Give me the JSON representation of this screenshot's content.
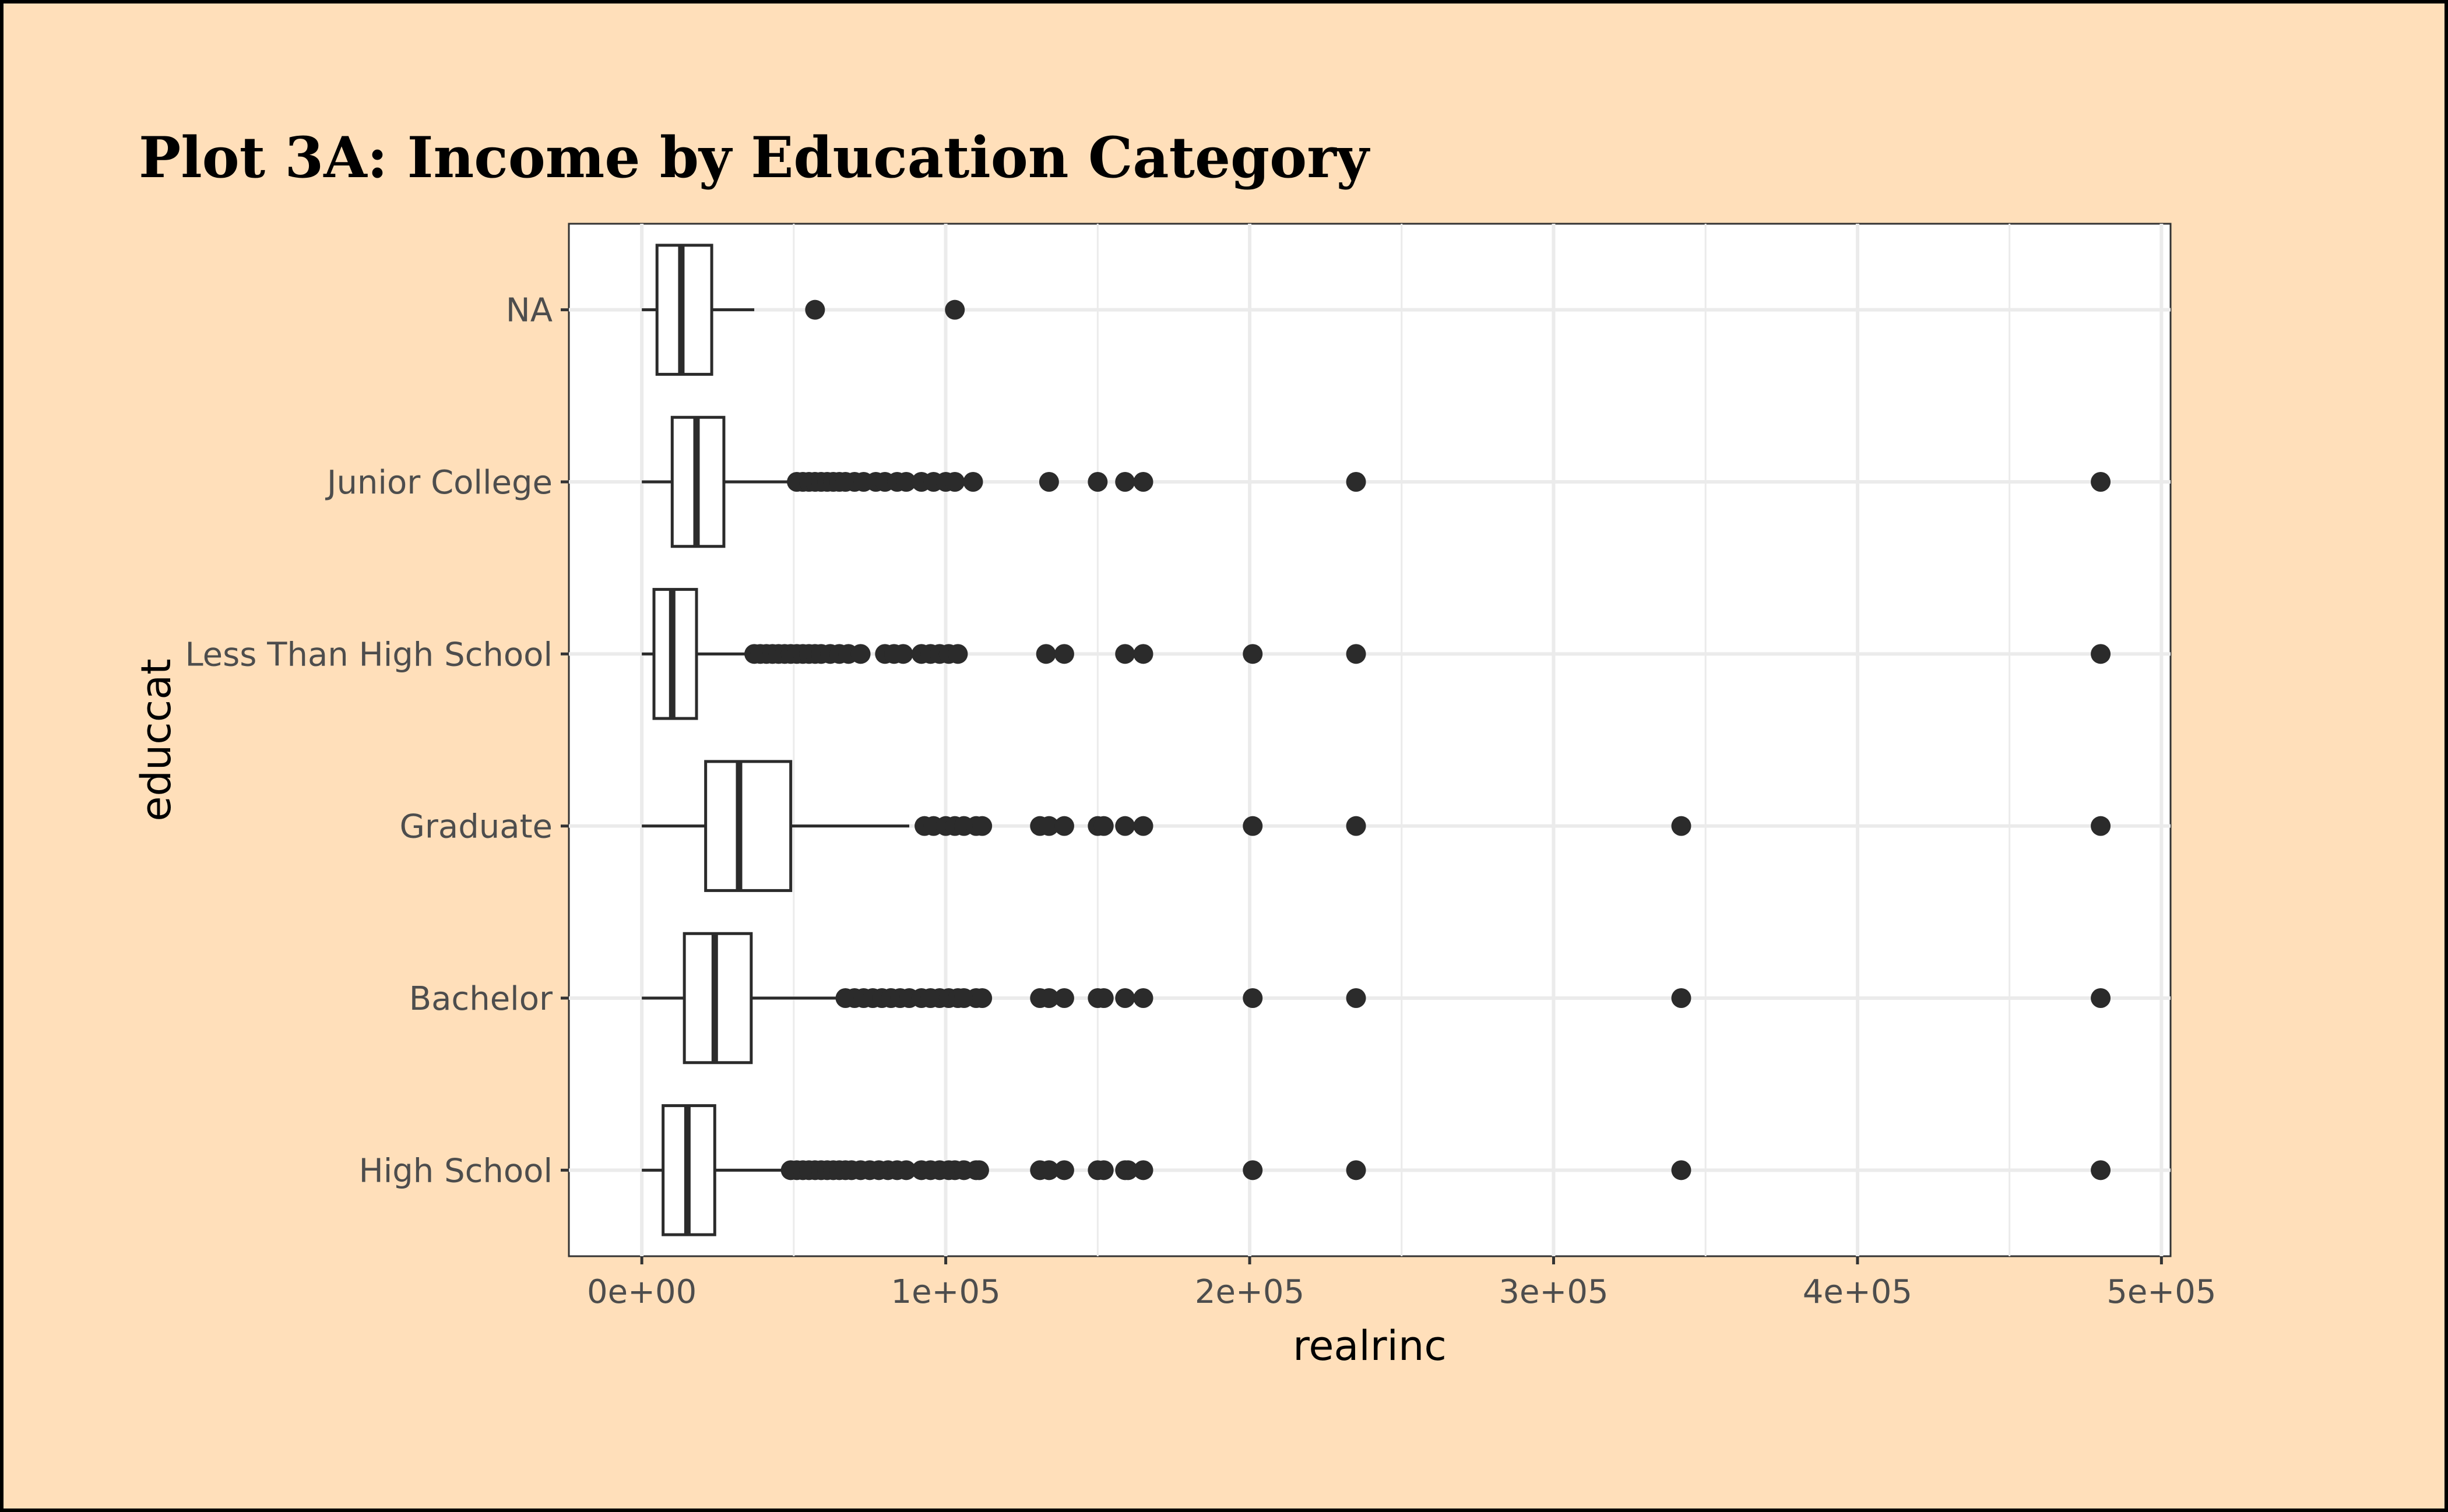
{
  "chart_data": {
    "type": "boxplot",
    "orientation": "horizontal",
    "title": "Plot 3A: Income by Education Category",
    "xlabel": "realrinc",
    "ylabel": "educcat",
    "xlim": [
      -24000,
      503000
    ],
    "x_ticks": [
      {
        "value": 0,
        "label": "0e+00"
      },
      {
        "value": 100000,
        "label": "1e+05"
      },
      {
        "value": 200000,
        "label": "2e+05"
      },
      {
        "value": 300000,
        "label": "3e+05"
      },
      {
        "value": 400000,
        "label": "4e+05"
      },
      {
        "value": 500000,
        "label": "5e+05"
      }
    ],
    "grid": true,
    "background": "#ffdfba",
    "panel_color": "#ffffff",
    "mark_color": "#2b2b2b",
    "categories": [
      "High School",
      "Bachelor",
      "Graduate",
      "Less Than High School",
      "Junior College",
      "NA"
    ],
    "boxes": [
      {
        "category": "High School",
        "whisker_low": 0,
        "q1": 7000,
        "median": 15000,
        "q3": 24000,
        "whisker_high": 48000,
        "outliers": [
          49000,
          51000,
          53000,
          55000,
          57000,
          59000,
          61000,
          63000,
          65000,
          67000,
          69000,
          72000,
          75000,
          78000,
          81000,
          84000,
          87000,
          92000,
          95000,
          98000,
          101000,
          103000,
          106000,
          110000,
          111000,
          131000,
          134000,
          139000,
          150000,
          152000,
          159000,
          160000,
          165000,
          201000,
          235000,
          342000,
          480000
        ]
      },
      {
        "category": "Bachelor",
        "whisker_low": 0,
        "q1": 14000,
        "median": 24000,
        "q3": 36000,
        "whisker_high": 66000,
        "outliers": [
          67000,
          70000,
          73000,
          76000,
          79000,
          82000,
          85000,
          88000,
          92000,
          95000,
          98000,
          101000,
          104000,
          106000,
          110000,
          112000,
          131000,
          134000,
          139000,
          150000,
          152000,
          159000,
          165000,
          201000,
          235000,
          342000,
          480000
        ]
      },
      {
        "category": "Graduate",
        "whisker_low": 0,
        "q1": 21000,
        "median": 32000,
        "q3": 49000,
        "whisker_high": 88000,
        "outliers": [
          93000,
          96000,
          100000,
          103000,
          106000,
          110000,
          112000,
          131000,
          134000,
          139000,
          150000,
          152000,
          159000,
          165000,
          201000,
          235000,
          342000,
          480000
        ]
      },
      {
        "category": "Less Than High School",
        "whisker_low": 0,
        "q1": 4000,
        "median": 10000,
        "q3": 18000,
        "whisker_high": 35000,
        "outliers": [
          37000,
          39000,
          41000,
          43000,
          45000,
          47000,
          49000,
          51000,
          53000,
          55000,
          57000,
          59000,
          62000,
          65000,
          68000,
          72000,
          80000,
          83000,
          86000,
          92000,
          95000,
          98000,
          101000,
          104000,
          133000,
          139000,
          159000,
          165000,
          201000,
          235000,
          480000
        ]
      },
      {
        "category": "Junior College",
        "whisker_low": 0,
        "q1": 10000,
        "median": 18000,
        "q3": 27000,
        "whisker_high": 50000,
        "outliers": [
          51000,
          53000,
          55000,
          57000,
          59000,
          61000,
          63000,
          65000,
          67000,
          70000,
          73000,
          77000,
          80000,
          84000,
          87000,
          92000,
          96000,
          100000,
          103000,
          109000,
          134000,
          150000,
          159000,
          165000,
          235000,
          480000
        ]
      },
      {
        "category": "NA",
        "whisker_low": 0,
        "q1": 5000,
        "median": 13000,
        "q3": 23000,
        "whisker_high": 37000,
        "outliers": [
          57000,
          103000
        ]
      }
    ]
  }
}
